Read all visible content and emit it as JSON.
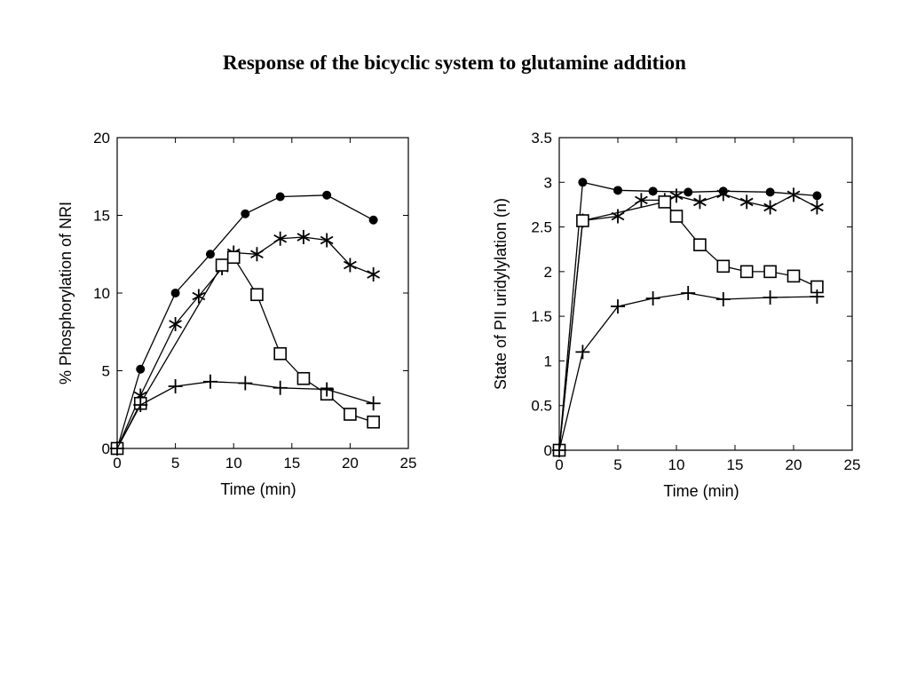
{
  "slide": {
    "title": "Response of the bicyclic system to glutamine addition"
  },
  "chart_data": [
    {
      "type": "line",
      "xlabel": "Time (min)",
      "ylabel": "% Phosphorylation of NRI",
      "xlim": [
        0,
        25
      ],
      "ylim": [
        0,
        20
      ],
      "xticks": [
        0,
        5,
        10,
        15,
        20,
        25
      ],
      "yticks": [
        0,
        5,
        10,
        15,
        20
      ],
      "grid": false,
      "series": [
        {
          "marker": "circle",
          "x": [
            0,
            2,
            5,
            8,
            11,
            14,
            18,
            22
          ],
          "y": [
            0,
            5.1,
            10.0,
            12.5,
            15.1,
            16.2,
            16.3,
            14.7
          ]
        },
        {
          "marker": "asterisk",
          "x": [
            0,
            2,
            5,
            7,
            9,
            10,
            12,
            14,
            16,
            18,
            20,
            22
          ],
          "y": [
            0,
            3.4,
            8.0,
            9.8,
            11.6,
            12.6,
            12.5,
            13.5,
            13.6,
            13.4,
            11.8,
            11.2
          ]
        },
        {
          "marker": "square",
          "x": [
            0,
            2,
            9,
            10,
            12,
            14,
            16,
            18,
            20,
            22
          ],
          "y": [
            0,
            2.9,
            11.8,
            12.3,
            9.9,
            6.1,
            4.5,
            3.5,
            2.2,
            1.7
          ]
        },
        {
          "marker": "plus",
          "x": [
            0,
            2,
            5,
            8,
            11,
            14,
            18,
            22
          ],
          "y": [
            0,
            2.8,
            4.0,
            4.3,
            4.2,
            3.9,
            3.8,
            2.9
          ]
        }
      ]
    },
    {
      "type": "line",
      "xlabel": "Time (min)",
      "ylabel": "State of PII uridylylation (n)",
      "xlim": [
        0,
        25
      ],
      "ylim": [
        0,
        3.5
      ],
      "xticks": [
        0,
        5,
        10,
        15,
        20,
        25
      ],
      "yticks": [
        0,
        0.5,
        1,
        1.5,
        2,
        2.5,
        3,
        3.5
      ],
      "grid": false,
      "series": [
        {
          "marker": "circle",
          "x": [
            0,
            2,
            5,
            8,
            11,
            14,
            18,
            22
          ],
          "y": [
            0,
            3.0,
            2.91,
            2.9,
            2.89,
            2.9,
            2.89,
            2.85
          ]
        },
        {
          "marker": "asterisk",
          "x": [
            0,
            2,
            5,
            7,
            9,
            10,
            12,
            14,
            16,
            18,
            20,
            22
          ],
          "y": [
            0,
            2.57,
            2.62,
            2.8,
            2.8,
            2.85,
            2.78,
            2.87,
            2.78,
            2.72,
            2.86,
            2.72
          ]
        },
        {
          "marker": "square",
          "x": [
            0,
            2,
            9,
            10,
            12,
            14,
            16,
            18,
            20,
            22
          ],
          "y": [
            0,
            2.57,
            2.78,
            2.62,
            2.3,
            2.06,
            2.0,
            2.0,
            1.95,
            1.83
          ]
        },
        {
          "marker": "plus",
          "x": [
            0,
            2,
            5,
            8,
            11,
            14,
            18,
            22
          ],
          "y": [
            0,
            1.1,
            1.61,
            1.7,
            1.76,
            1.69,
            1.71,
            1.72
          ]
        }
      ]
    }
  ]
}
